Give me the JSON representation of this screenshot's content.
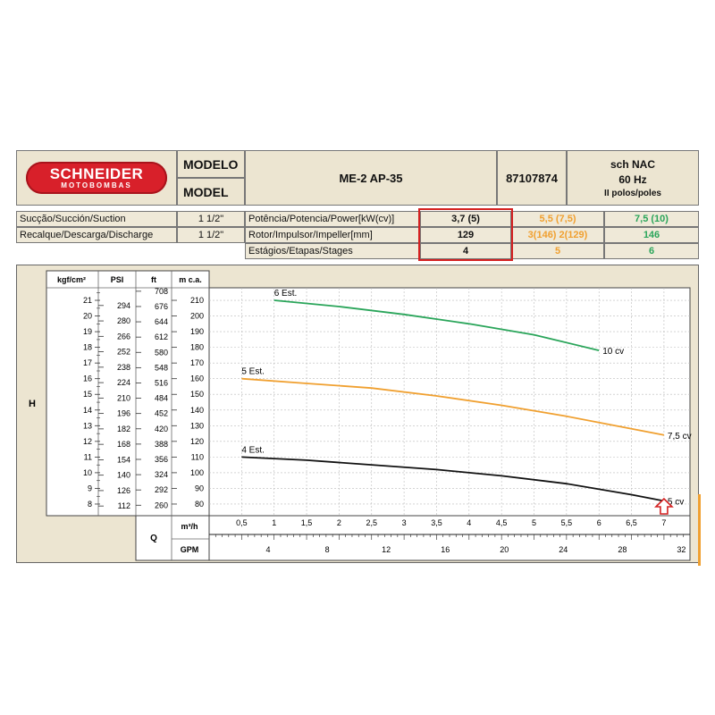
{
  "header": {
    "brand": "SCHNEIDER",
    "brand_sub": "MOTOBOMBAS",
    "modelo_label": "MODELO",
    "model_label": "MODEL",
    "model_name": "ME-2 AP-35",
    "code": "87107874",
    "sch": "sch NAC",
    "freq": "60 Hz",
    "poles": "II polos/poles"
  },
  "specs": {
    "suction_label": "Sucção/Succión/Suction",
    "suction_value": "1 1/2\"",
    "discharge_label": "Recalque/Descarga/Discharge",
    "discharge_value": "1 1/2\"",
    "power_label": "Potência/Potencia/Power[kW(cv)]",
    "rotor_label": "Rotor/Impulsor/Impeller[mm]",
    "stages_label": "Estágios/Etapas/Stages",
    "col1": {
      "power": "3,7 (5)",
      "rotor": "129",
      "stages": "4",
      "color": "#111111"
    },
    "col2": {
      "power": "5,5 (7,5)",
      "rotor": "3(146) 2(129)",
      "stages": "5",
      "color": "#f0a030"
    },
    "col3": {
      "power": "7,5 (10)",
      "rotor": "146",
      "stages": "6",
      "color": "#2aa55a"
    },
    "highlight_color": "#d42020"
  },
  "chart_data": {
    "type": "line",
    "ylabel": "H",
    "xlabel_q": "Q",
    "x_unit_m3h": "m³/h",
    "x_unit_gpm": "GPM",
    "y_headers": [
      "kgf/cm²",
      "PSI",
      "ft",
      "m c.a."
    ],
    "kgf_ticks": [
      "21",
      "20",
      "19",
      "18",
      "17",
      "16",
      "15",
      "14",
      "13",
      "12",
      "11",
      "10",
      "9",
      "8"
    ],
    "psi_ticks": [
      "294",
      "280",
      "266",
      "252",
      "238",
      "224",
      "210",
      "196",
      "182",
      "168",
      "154",
      "140",
      "126",
      "112"
    ],
    "ft_ticks": [
      "708",
      "676",
      "644",
      "612",
      "580",
      "548",
      "516",
      "484",
      "452",
      "420",
      "388",
      "356",
      "324",
      "292",
      "260"
    ],
    "mca_ticks": [
      "210",
      "200",
      "190",
      "180",
      "170",
      "160",
      "150",
      "140",
      "130",
      "120",
      "110",
      "100",
      "90",
      "80"
    ],
    "x_ticks_m3h": [
      "0,5",
      "1",
      "1,5",
      "2",
      "2,5",
      "3",
      "3,5",
      "4",
      "4,5",
      "5",
      "5,5",
      "6",
      "6,5",
      "7"
    ],
    "x_ticks_gpm": [
      "4",
      "8",
      "12",
      "16",
      "20",
      "24",
      "28",
      "32"
    ],
    "xlim": [
      0,
      7.4
    ],
    "ylim": [
      72,
      218
    ],
    "series": [
      {
        "name": "6 Est.",
        "end_label": "10 cv",
        "color": "#2aa55a",
        "x": [
          1,
          2,
          3,
          4,
          5,
          6
        ],
        "y": [
          210,
          206,
          201,
          195,
          188,
          178
        ]
      },
      {
        "name": "5 Est.",
        "end_label": "7,5 cv",
        "color": "#f0a030",
        "x": [
          0.5,
          1.5,
          2.5,
          3.5,
          4.5,
          5.5,
          6.5,
          7
        ],
        "y": [
          160,
          157,
          154,
          149,
          143,
          136,
          128,
          124
        ]
      },
      {
        "name": "4 Est.",
        "end_label": "5 cv",
        "color": "#111111",
        "x": [
          0.5,
          1.5,
          2.5,
          3.5,
          4.5,
          5.5,
          6.5,
          7
        ],
        "y": [
          110,
          108,
          105,
          102,
          98,
          93,
          86,
          82
        ]
      }
    ],
    "marker_x": 7,
    "marker_color": "#d42020",
    "grid": true
  }
}
